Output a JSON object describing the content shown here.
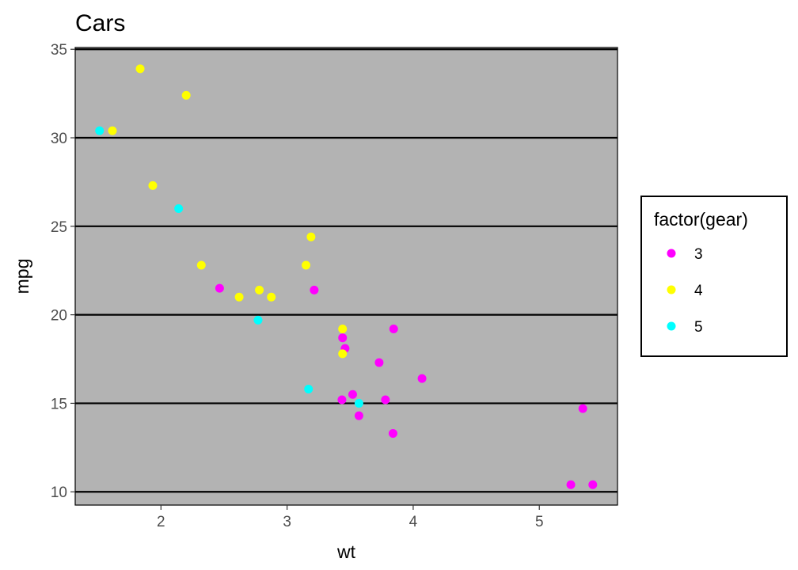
{
  "chart_data": {
    "type": "scatter",
    "title": "Cars",
    "xlabel": "wt",
    "ylabel": "mpg",
    "xlim": [
      1.32,
      5.62
    ],
    "ylim": [
      9.25,
      35.1
    ],
    "xticks": [
      2,
      3,
      4,
      5
    ],
    "yticks": [
      10,
      15,
      20,
      25,
      30,
      35
    ],
    "background_color": "#b3b3b3",
    "gridlines": "horizontal major (black)",
    "legend": {
      "title": "factor(gear)",
      "position": "right"
    },
    "series": [
      {
        "name": "3",
        "color": "#ff00ff",
        "points": [
          [
            2.465,
            21.5
          ],
          [
            3.215,
            21.4
          ],
          [
            3.44,
            18.7
          ],
          [
            3.46,
            18.1
          ],
          [
            3.57,
            14.3
          ],
          [
            3.73,
            17.3
          ],
          [
            3.78,
            15.2
          ],
          [
            4.07,
            16.4
          ],
          [
            5.25,
            10.4
          ],
          [
            5.424,
            10.4
          ],
          [
            5.345,
            14.7
          ],
          [
            3.52,
            15.5
          ],
          [
            3.435,
            15.2
          ],
          [
            3.84,
            13.3
          ],
          [
            3.845,
            19.2
          ]
        ]
      },
      {
        "name": "4",
        "color": "#ffff00",
        "points": [
          [
            2.62,
            21.0
          ],
          [
            2.875,
            21.0
          ],
          [
            2.32,
            22.8
          ],
          [
            3.19,
            24.4
          ],
          [
            3.15,
            22.8
          ],
          [
            3.44,
            19.2
          ],
          [
            3.44,
            17.8
          ],
          [
            2.2,
            32.4
          ],
          [
            1.615,
            30.4
          ],
          [
            1.835,
            33.9
          ],
          [
            1.935,
            27.3
          ],
          [
            2.78,
            21.4
          ]
        ]
      },
      {
        "name": "5",
        "color": "#00ffff",
        "points": [
          [
            2.14,
            26.0
          ],
          [
            1.513,
            30.4
          ],
          [
            3.17,
            15.8
          ],
          [
            2.77,
            19.7
          ],
          [
            3.57,
            15.0
          ]
        ]
      }
    ]
  }
}
